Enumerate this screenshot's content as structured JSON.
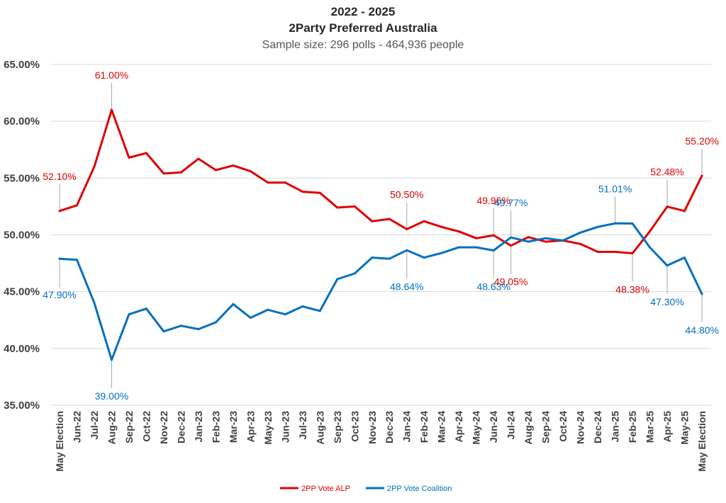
{
  "chart_data": {
    "type": "line",
    "title": "2022 - 2025",
    "subtitle_line1": "2Party Preferred Australia",
    "subtitle_line2": "Sample size: 296 polls - 464,936 people",
    "ylim": [
      35,
      65
    ],
    "yticks": [
      35,
      40,
      45,
      50,
      55,
      60,
      65
    ],
    "ytick_labels": [
      "35.00%",
      "40.00%",
      "45.00%",
      "50.00%",
      "55.00%",
      "60.00%",
      "65.00%"
    ],
    "grid": true,
    "legend_position": "bottom",
    "categories": [
      "May Election",
      "Jun-22",
      "Jul-22",
      "Aug-22",
      "Sep-22",
      "Oct-22",
      "Nov-22",
      "Dec-22",
      "Jan-23",
      "Feb-23",
      "Mar-23",
      "Apr-23",
      "May-23",
      "Jun-23",
      "Jul-23",
      "Aug-23",
      "Sep-23",
      "Oct-23",
      "Nov-23",
      "Dec-23",
      "Jan-24",
      "Feb-24",
      "Mar-24",
      "Apr-24",
      "May-24",
      "Jun-24",
      "Jul-24",
      "Aug-24",
      "Sep-24",
      "Oct-24",
      "Nov-24",
      "Dec-24",
      "Jan-25",
      "Feb-25",
      "Mar-25",
      "Apr-25",
      "May-25",
      "May Election"
    ],
    "series": [
      {
        "name": "2PP Vote ALP",
        "color": "#e00000",
        "values": [
          52.1,
          52.6,
          56.0,
          61.0,
          56.8,
          57.2,
          55.4,
          55.5,
          56.7,
          55.7,
          56.1,
          55.6,
          54.6,
          54.6,
          53.8,
          53.7,
          52.4,
          52.5,
          51.2,
          51.4,
          50.5,
          51.2,
          50.7,
          50.3,
          49.7,
          49.96,
          49.05,
          49.8,
          49.4,
          49.5,
          49.2,
          48.5,
          48.5,
          48.38,
          50.3,
          52.48,
          52.1,
          55.2
        ],
        "labels": [
          {
            "index": 0,
            "text": "52.10%",
            "pos": "above"
          },
          {
            "index": 3,
            "text": "61.00%",
            "pos": "above"
          },
          {
            "index": 20,
            "text": "50.50%",
            "pos": "above"
          },
          {
            "index": 25,
            "text": "49.96%",
            "pos": "above"
          },
          {
            "index": 26,
            "text": "49.05%",
            "pos": "below"
          },
          {
            "index": 33,
            "text": "48.38%",
            "pos": "below"
          },
          {
            "index": 35,
            "text": "52.48%",
            "pos": "above"
          },
          {
            "index": 37,
            "text": "55.20%",
            "pos": "above"
          }
        ]
      },
      {
        "name": "2PP Vote Coalition",
        "color": "#0070c0",
        "values": [
          47.9,
          47.8,
          44.0,
          39.0,
          43.0,
          43.5,
          41.5,
          42.0,
          41.7,
          42.3,
          43.9,
          42.7,
          43.4,
          43.0,
          43.7,
          43.3,
          46.1,
          46.6,
          48.0,
          47.9,
          48.64,
          48.0,
          48.4,
          48.9,
          48.9,
          48.63,
          49.77,
          49.4,
          49.7,
          49.5,
          50.2,
          50.7,
          51.01,
          51.0,
          48.9,
          47.3,
          48.0,
          44.8
        ],
        "labels": [
          {
            "index": 0,
            "text": "47.90%",
            "pos": "below"
          },
          {
            "index": 3,
            "text": "39.00%",
            "pos": "below"
          },
          {
            "index": 20,
            "text": "48.64%",
            "pos": "below"
          },
          {
            "index": 25,
            "text": "48.63%",
            "pos": "below"
          },
          {
            "index": 26,
            "text": "49.77%",
            "pos": "above"
          },
          {
            "index": 32,
            "text": "51.01%",
            "pos": "above"
          },
          {
            "index": 35,
            "text": "47.30%",
            "pos": "below"
          },
          {
            "index": 37,
            "text": "44.80%",
            "pos": "below"
          }
        ]
      }
    ]
  }
}
